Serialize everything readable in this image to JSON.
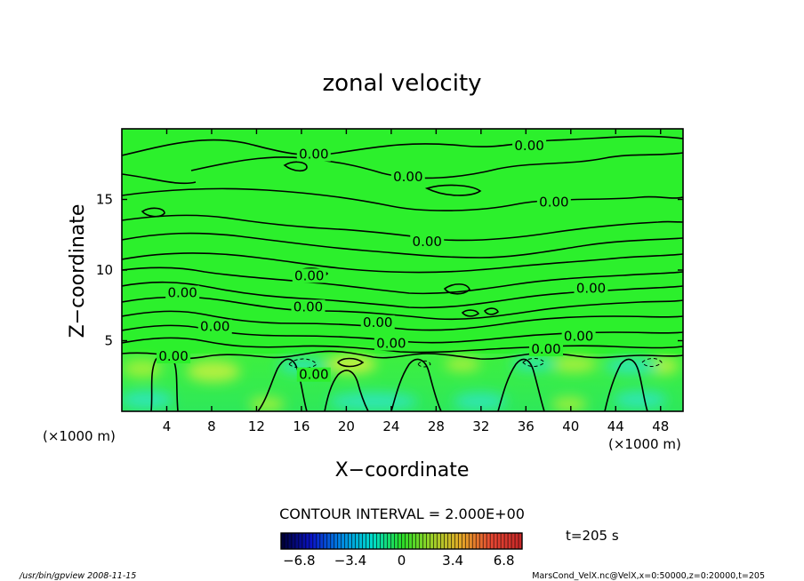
{
  "chart_data": {
    "type": "heatmap",
    "title": "zonal velocity",
    "xlabel": "X−coordinate",
    "ylabel": "Z−coordinate",
    "x_unit": "(×1000 m)",
    "y_unit": "(×1000 m)",
    "xlim": [
      0,
      50
    ],
    "ylim": [
      0,
      20
    ],
    "x_ticks": [
      4,
      8,
      12,
      16,
      20,
      24,
      28,
      32,
      36,
      40,
      44,
      48
    ],
    "y_ticks": [
      5,
      10,
      15
    ],
    "contour_interval_text": "CONTOUR INTERVAL = 2.000E+00",
    "contour_labels": [
      {
        "text": "0.00",
        "x": 17.1,
        "z": 18.2
      },
      {
        "text": "0.00",
        "x": 25.5,
        "z": 16.6
      },
      {
        "text": "0.00",
        "x": 36.3,
        "z": 18.8
      },
      {
        "text": "0.00",
        "x": 38.5,
        "z": 14.8
      },
      {
        "text": "0.00",
        "x": 27.2,
        "z": 12.0
      },
      {
        "text": "0.00",
        "x": 16.7,
        "z": 9.6
      },
      {
        "text": "0.00",
        "x": 5.4,
        "z": 8.4
      },
      {
        "text": "0.00",
        "x": 16.6,
        "z": 7.4
      },
      {
        "text": "0.00",
        "x": 41.8,
        "z": 8.7
      },
      {
        "text": "0.00",
        "x": 8.3,
        "z": 6.0
      },
      {
        "text": "0.00",
        "x": 22.8,
        "z": 6.3
      },
      {
        "text": "0.00",
        "x": 24.0,
        "z": 4.8
      },
      {
        "text": "0.00",
        "x": 40.7,
        "z": 5.3
      },
      {
        "text": "0.00",
        "x": 4.6,
        "z": 3.9
      },
      {
        "text": "0.00",
        "x": 17.1,
        "z": 2.6
      },
      {
        "text": "0.00",
        "x": 37.8,
        "z": 4.4
      }
    ],
    "colorbar": {
      "tick_labels": [
        "−6.8",
        "−3.4",
        "0",
        "3.4",
        "6.8"
      ],
      "tick_values": [
        -6.8,
        -3.4,
        0,
        3.4,
        6.8
      ],
      "range": [
        -8,
        8
      ]
    },
    "grid": false,
    "legend": "colorbar-bottom"
  },
  "annotations": {
    "time": "t=205 s",
    "footer_left": "/usr/bin/gpview  2008-11-15",
    "footer_right": "MarsCond_VelX.nc@VelX,x=0:50000,z=0:20000,t=205"
  }
}
